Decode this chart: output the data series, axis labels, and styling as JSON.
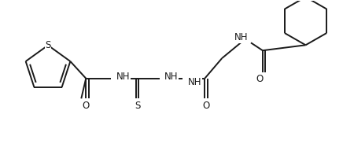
{
  "bg_color": "#ffffff",
  "line_color": "#1a1a1a",
  "figsize": [
    4.5,
    1.92
  ],
  "dpi": 100,
  "lw": 1.4,
  "fontsize": 8.5,
  "xlim": [
    0,
    4.5
  ],
  "ylim": [
    0,
    1.92
  ]
}
